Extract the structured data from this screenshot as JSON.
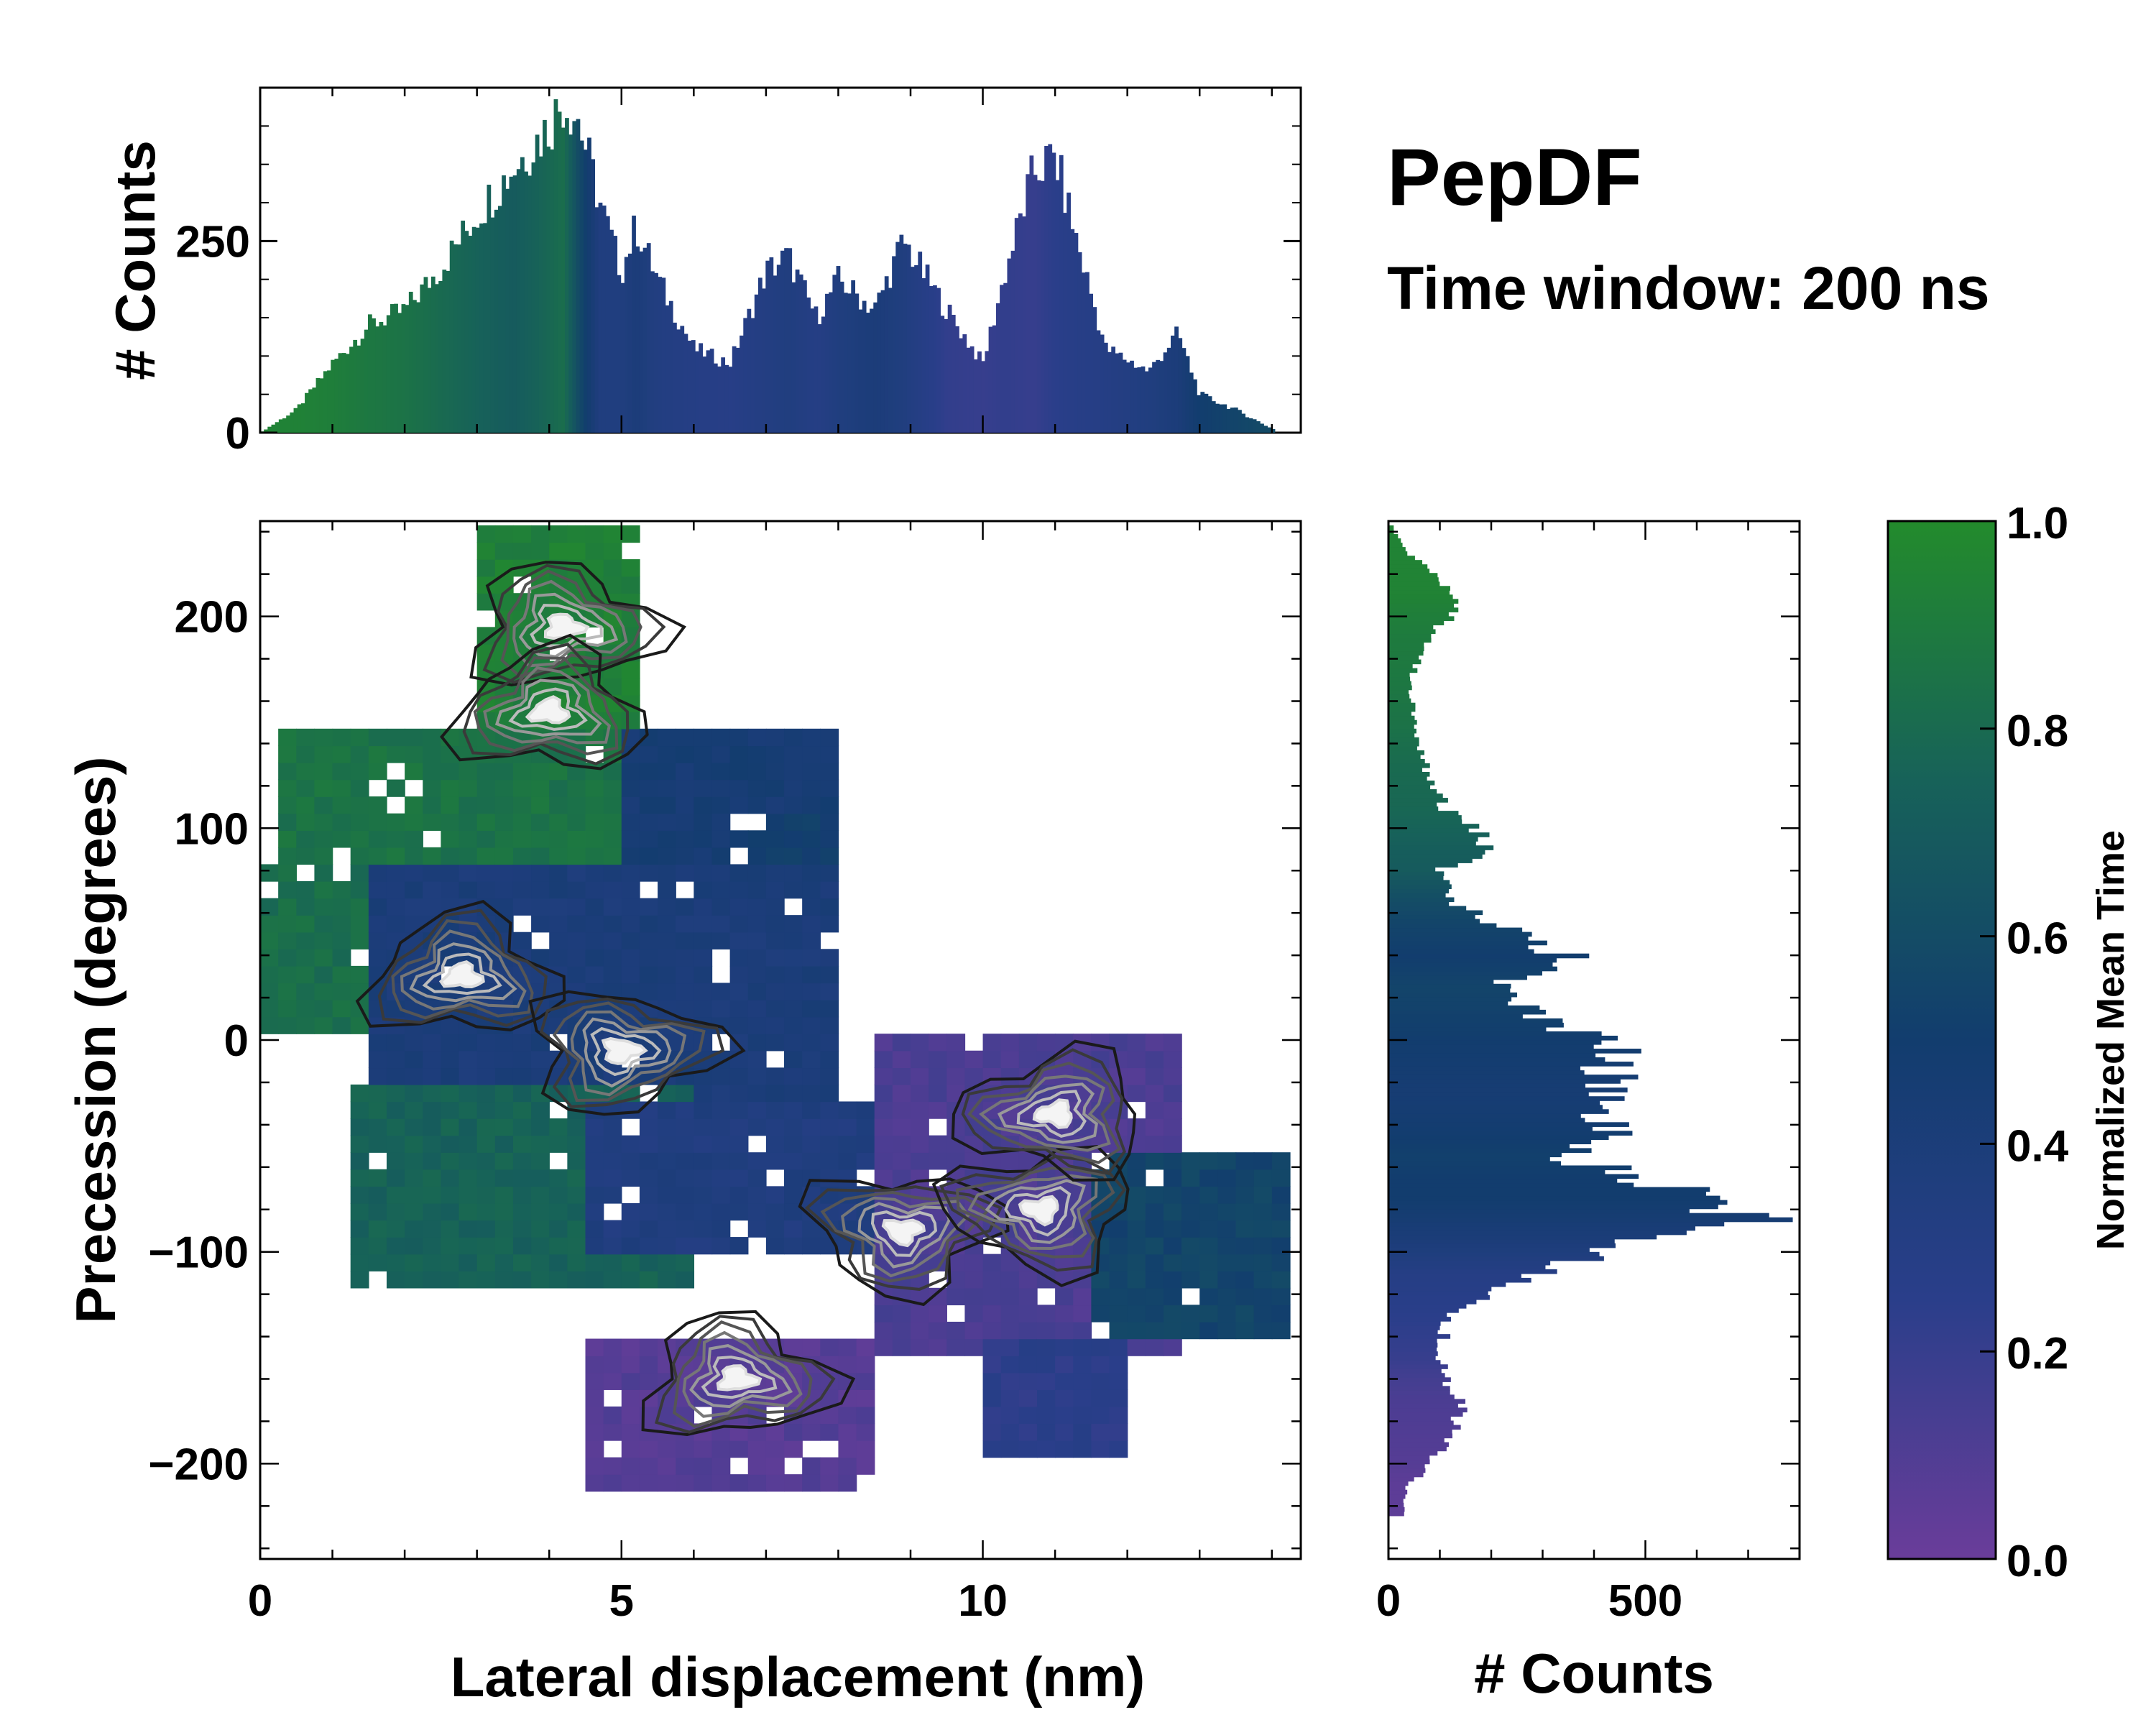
{
  "header": {
    "title": "PepDF",
    "subtitle": "Time window: 200 ns"
  },
  "colors": {
    "low": "#6a3d9a",
    "mid_low": "#2a3e8a",
    "mid": "#123d6e",
    "mid_high": "#176259",
    "high": "#238b2c"
  },
  "chart_data": [
    {
      "id": "top_histogram",
      "type": "bar",
      "title": "",
      "xlabel": "",
      "ylabel": "# Counts",
      "xlim": [
        0,
        14.4
      ],
      "ylim": [
        0,
        450
      ],
      "yticks": [
        0,
        250
      ],
      "ytick_labels": [
        "0",
        "250"
      ],
      "anchors_x": [
        0,
        0.5,
        1.0,
        1.5,
        2.0,
        2.5,
        3.0,
        3.5,
        4.0,
        4.2,
        4.4,
        4.7,
        5.0,
        5.2,
        5.5,
        6.0,
        6.5,
        7.0,
        7.3,
        7.7,
        8.0,
        8.5,
        8.9,
        9.5,
        10.0,
        10.3,
        10.7,
        11.0,
        11.3,
        11.7,
        12.3,
        12.7,
        13.0,
        13.5,
        14.0
      ],
      "anchors_counts": [
        0,
        30,
        90,
        140,
        160,
        215,
        285,
        345,
        400,
        435,
        410,
        300,
        210,
        270,
        200,
        110,
        90,
        210,
        230,
        150,
        200,
        160,
        250,
        160,
        90,
        205,
        340,
        360,
        250,
        110,
        80,
        130,
        50,
        30,
        5
      ],
      "anchors_mean_time": [
        0.95,
        0.94,
        0.92,
        0.88,
        0.85,
        0.8,
        0.75,
        0.7,
        0.78,
        0.82,
        0.6,
        0.35,
        0.35,
        0.4,
        0.33,
        0.3,
        0.28,
        0.32,
        0.35,
        0.3,
        0.35,
        0.4,
        0.35,
        0.22,
        0.2,
        0.22,
        0.2,
        0.25,
        0.28,
        0.3,
        0.35,
        0.4,
        0.5,
        0.55,
        0.6
      ]
    },
    {
      "id": "right_histogram",
      "type": "bar",
      "orientation": "horizontal",
      "xlabel": "# Counts",
      "ylabel": "",
      "xlim": [
        0,
        800
      ],
      "ylim": [
        -245,
        245
      ],
      "xticks": [
        0,
        500
      ],
      "xtick_labels": [
        "0",
        "500"
      ],
      "anchors_precession": [
        -220,
        -210,
        -200,
        -185,
        -170,
        -160,
        -150,
        -130,
        -110,
        -95,
        -85,
        -75,
        -65,
        -55,
        -40,
        -25,
        -10,
        0,
        10,
        25,
        40,
        55,
        65,
        80,
        90,
        100,
        110,
        130,
        150,
        170,
        190,
        200,
        210,
        220,
        230,
        240
      ],
      "anchors_counts": [
        30,
        40,
        80,
        120,
        150,
        110,
        100,
        120,
        300,
        500,
        700,
        600,
        500,
        330,
        450,
        400,
        450,
        420,
        300,
        210,
        350,
        200,
        130,
        100,
        200,
        160,
        110,
        70,
        50,
        40,
        80,
        120,
        130,
        90,
        40,
        10
      ],
      "anchors_mean_time": [
        0.05,
        0.05,
        0.08,
        0.1,
        0.12,
        0.15,
        0.2,
        0.25,
        0.3,
        0.4,
        0.45,
        0.5,
        0.5,
        0.52,
        0.48,
        0.45,
        0.48,
        0.5,
        0.52,
        0.55,
        0.5,
        0.55,
        0.6,
        0.7,
        0.72,
        0.75,
        0.78,
        0.8,
        0.85,
        0.88,
        0.9,
        0.92,
        0.95,
        0.95,
        0.95,
        0.95
      ]
    },
    {
      "id": "heatmap_main",
      "type": "heatmap",
      "xlabel": "Lateral displacement (nm)",
      "ylabel": "Precession (degrees)",
      "xlim": [
        0,
        14.4
      ],
      "ylim": [
        -245,
        245
      ],
      "xticks": [
        0,
        5,
        10
      ],
      "xtick_labels": [
        "0",
        "5",
        "10"
      ],
      "yticks": [
        200,
        100,
        0,
        -100,
        -200
      ],
      "ytick_labels": [
        "200",
        "100",
        "0",
        "−100",
        "−200"
      ],
      "regions": [
        {
          "x": [
            3.3,
            4.2
          ],
          "y": [
            155,
            240
          ],
          "mean_time": 0.95
        },
        {
          "x": [
            3.0,
            5.3
          ],
          "y": [
            95,
            240
          ],
          "mean_time": 0.93
        },
        {
          "x": [
            0.2,
            5.2
          ],
          "y": [
            60,
            150
          ],
          "mean_time": 0.85
        },
        {
          "x": [
            0.0,
            2.0
          ],
          "y": [
            0,
            80
          ],
          "mean_time": 0.82
        },
        {
          "x": [
            5.0,
            8.0
          ],
          "y": [
            30,
            150
          ],
          "mean_time": 0.45
        },
        {
          "x": [
            6.5,
            8.0
          ],
          "y": [
            -10,
            110
          ],
          "mean_time": 0.5
        },
        {
          "x": [
            1.5,
            8.0
          ],
          "y": [
            -40,
            80
          ],
          "mean_time": 0.4
        },
        {
          "x": [
            1.3,
            6.0
          ],
          "y": [
            -120,
            -20
          ],
          "mean_time": 0.75
        },
        {
          "x": [
            4.5,
            10.0
          ],
          "y": [
            -100,
            -30
          ],
          "mean_time": 0.35
        },
        {
          "x": [
            8.4,
            12.8
          ],
          "y": [
            -150,
            0
          ],
          "mean_time": 0.12
        },
        {
          "x": [
            11.5,
            14.2
          ],
          "y": [
            -140,
            -50
          ],
          "mean_time": 0.55
        },
        {
          "x": [
            4.6,
            8.6
          ],
          "y": [
            -210,
            -140
          ],
          "mean_time": 0.08
        },
        {
          "x": [
            10.0,
            12.0
          ],
          "y": [
            -200,
            -140
          ],
          "mean_time": 0.25
        }
      ],
      "peaks": [
        {
          "x": 2.8,
          "y": 30
        },
        {
          "x": 4.2,
          "y": 195
        },
        {
          "x": 5.0,
          "y": -5
        },
        {
          "x": 8.9,
          "y": -90
        },
        {
          "x": 10.8,
          "y": -80
        },
        {
          "x": 11.0,
          "y": -35
        },
        {
          "x": 4.0,
          "y": 155
        },
        {
          "x": 6.6,
          "y": -160
        }
      ]
    },
    {
      "id": "colorbar",
      "type": "heatmap",
      "label": "Normalized Mean Time",
      "ylim": [
        0,
        1
      ],
      "ticks": [
        0,
        0.2,
        0.4,
        0.6,
        0.8,
        1.0
      ],
      "tick_labels": [
        "0.0",
        "0.2",
        "0.4",
        "0.6",
        "0.8",
        "1.0"
      ]
    }
  ]
}
